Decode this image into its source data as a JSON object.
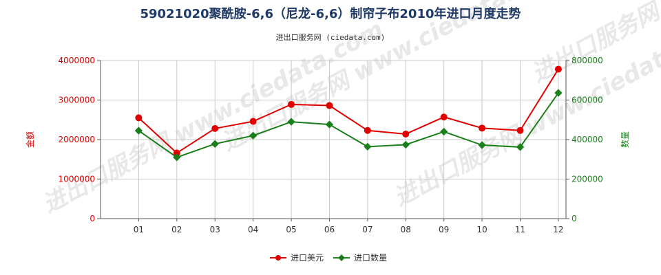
{
  "title": "59021020聚酰胺-6,6（尼龙-6,6）制帘子布2010年进口月度走势",
  "subtitle": "进出口服务网 (ciedata.com)",
  "watermark": "进出口服务网 www.ciedata.com",
  "colors": {
    "usd": "#e00000",
    "qty": "#1a7f1a",
    "grid": "#c8c8c8",
    "axis": "#555555"
  },
  "chart_data": {
    "type": "line",
    "categories": [
      "01",
      "02",
      "03",
      "04",
      "05",
      "06",
      "07",
      "08",
      "09",
      "10",
      "11",
      "12"
    ],
    "series": [
      {
        "name": "进口美元",
        "axis": "left",
        "color": "#e00000",
        "values": [
          2550000,
          1660000,
          2280000,
          2460000,
          2890000,
          2860000,
          2230000,
          2140000,
          2570000,
          2290000,
          2230000,
          3780000
        ]
      },
      {
        "name": "进口数量",
        "axis": "right",
        "color": "#1a7f1a",
        "values": [
          445000,
          310000,
          378000,
          420000,
          490000,
          476000,
          364000,
          374000,
          440000,
          372000,
          362000,
          636000
        ]
      }
    ],
    "left_axis": {
      "label": "金额",
      "min": 0,
      "max": 4000000,
      "ticks": [
        "0",
        "1000000",
        "2000000",
        "3000000",
        "4000000"
      ]
    },
    "right_axis": {
      "label": "数量",
      "min": 0,
      "max": 800000,
      "ticks": [
        "0",
        "200000",
        "400000",
        "600000",
        "800000"
      ]
    },
    "grid": true,
    "legend_position": "bottom-center"
  }
}
